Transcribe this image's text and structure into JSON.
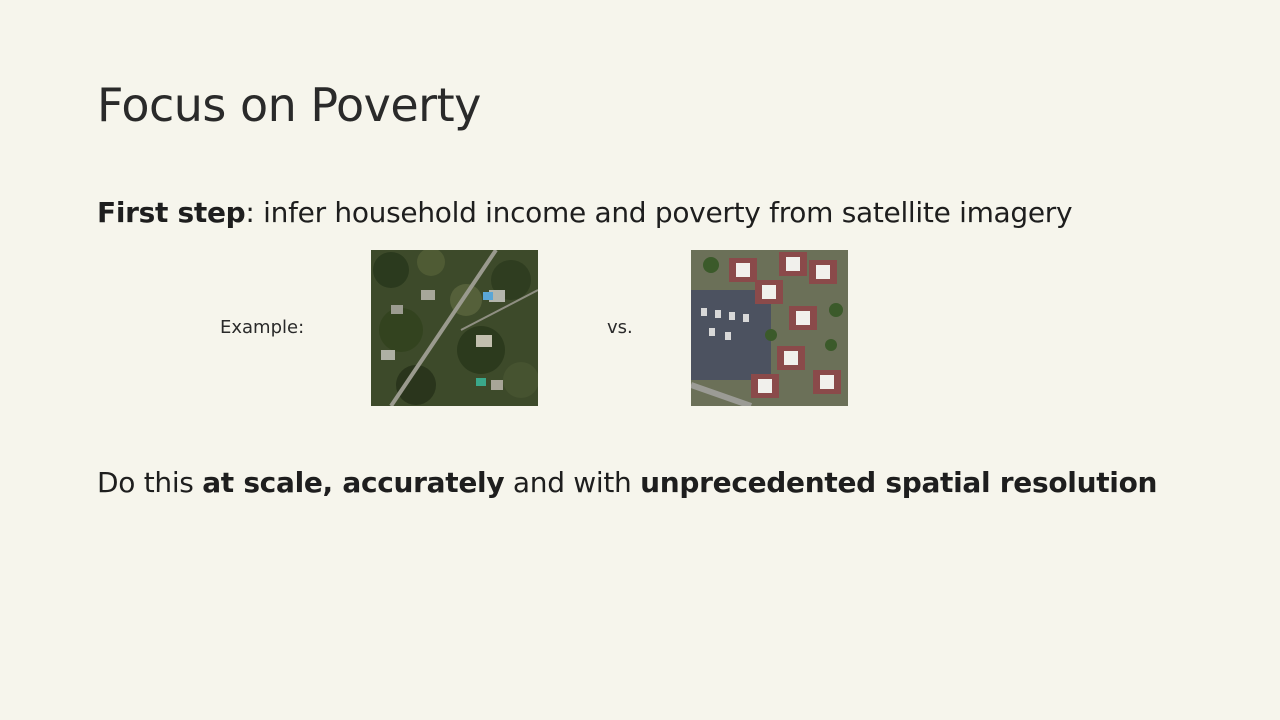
{
  "slide": {
    "title": "Focus on Poverty",
    "line1": {
      "bold": "First step",
      "rest": ": infer household income and poverty from satellite imagery"
    },
    "example_label": "Example:",
    "vs_label": "vs.",
    "line2": {
      "part1": "Do this ",
      "bold1": "at scale, accurately",
      "part2": " and with ",
      "bold2": "unprecedented spatial resolution"
    },
    "images": {
      "left": "wealthy-neighborhood-satellite-image",
      "right": "dense-housing-satellite-image"
    }
  }
}
